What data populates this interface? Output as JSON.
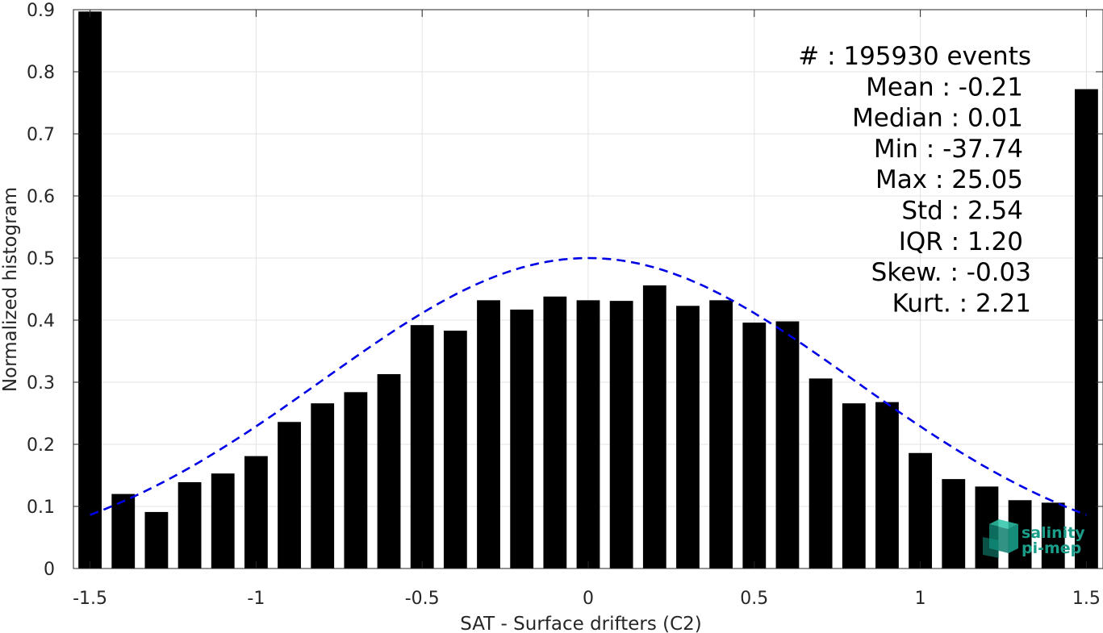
{
  "chart_data": {
    "type": "bar",
    "xlabel": "SAT - Surface drifters (C2)",
    "ylabel": "Normalized histogram",
    "xlim": [
      -1.55,
      1.55
    ],
    "ylim": [
      0,
      0.9
    ],
    "x_ticks": [
      -1.5,
      -1,
      -0.5,
      0,
      0.5,
      1,
      1.5
    ],
    "x_tick_labels": [
      "-1.5",
      "-1",
      "-0.5",
      "0",
      "0.5",
      "1",
      "1.5"
    ],
    "y_ticks": [
      0,
      0.1,
      0.2,
      0.3,
      0.4,
      0.5,
      0.6,
      0.7,
      0.8,
      0.9
    ],
    "y_tick_labels": [
      "0",
      "0.1",
      "0.2",
      "0.3",
      "0.4",
      "0.5",
      "0.6",
      "0.7",
      "0.8",
      "0.9"
    ],
    "grid": true,
    "bar_width": 0.07,
    "bar_color": "#000000",
    "bars": [
      {
        "x": -1.5,
        "y": 0.897
      },
      {
        "x": -1.4,
        "y": 0.12
      },
      {
        "x": -1.3,
        "y": 0.091
      },
      {
        "x": -1.2,
        "y": 0.139
      },
      {
        "x": -1.1,
        "y": 0.153
      },
      {
        "x": -1.0,
        "y": 0.181
      },
      {
        "x": -0.9,
        "y": 0.236
      },
      {
        "x": -0.8,
        "y": 0.266
      },
      {
        "x": -0.7,
        "y": 0.284
      },
      {
        "x": -0.6,
        "y": 0.313
      },
      {
        "x": -0.5,
        "y": 0.392
      },
      {
        "x": -0.4,
        "y": 0.383
      },
      {
        "x": -0.3,
        "y": 0.432
      },
      {
        "x": -0.2,
        "y": 0.417
      },
      {
        "x": -0.1,
        "y": 0.438
      },
      {
        "x": 0.0,
        "y": 0.432
      },
      {
        "x": 0.1,
        "y": 0.431
      },
      {
        "x": 0.2,
        "y": 0.456
      },
      {
        "x": 0.3,
        "y": 0.423
      },
      {
        "x": 0.4,
        "y": 0.432
      },
      {
        "x": 0.5,
        "y": 0.396
      },
      {
        "x": 0.6,
        "y": 0.398
      },
      {
        "x": 0.7,
        "y": 0.306
      },
      {
        "x": 0.8,
        "y": 0.266
      },
      {
        "x": 0.9,
        "y": 0.268
      },
      {
        "x": 1.0,
        "y": 0.186
      },
      {
        "x": 1.1,
        "y": 0.144
      },
      {
        "x": 1.2,
        "y": 0.132
      },
      {
        "x": 1.3,
        "y": 0.11
      },
      {
        "x": 1.4,
        "y": 0.106
      },
      {
        "x": 1.5,
        "y": 0.772
      }
    ],
    "fit_curve": {
      "style": "dashed",
      "color": "#0000e6",
      "x_range": [
        -1.5,
        1.5
      ],
      "peak": 0.5,
      "std": 0.8
    },
    "stats": [
      "#  : 195930 events",
      "Mean : -0.21",
      "Median : 0.01",
      "Min : -37.74",
      "Max : 25.05",
      "Std : 2.54",
      "IQR : 1.20",
      "Skew. : -0.03",
      "Kurt. : 2.21"
    ]
  },
  "logo": {
    "line1": "salinity",
    "line2": "pi-mep",
    "color": "#1a9e8a"
  }
}
